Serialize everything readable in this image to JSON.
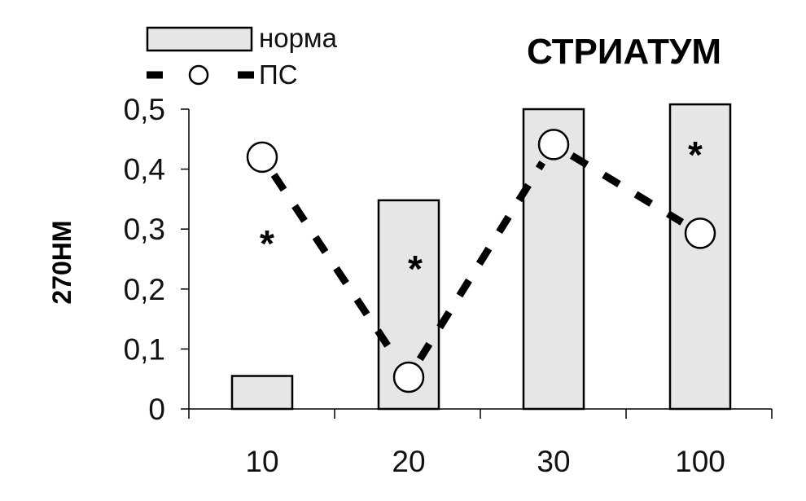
{
  "chart_data": {
    "type": "bar",
    "title": "СТРИАТУМ",
    "xlabel": "",
    "ylabel": "270НМ",
    "categories": [
      "10",
      "20",
      "30",
      "100"
    ],
    "ylim": [
      0,
      0.5
    ],
    "y_ticks": [
      "0",
      "0,1",
      "0,2",
      "0,3",
      "0,4",
      "0,5"
    ],
    "grid": false,
    "legend_position": "top-left",
    "series": [
      {
        "name": "норма",
        "type": "bar",
        "values": [
          0.055,
          0.348,
          0.5,
          0.508
        ],
        "color": "#e6e6e6"
      },
      {
        "name": "ПС",
        "type": "line",
        "values": [
          0.42,
          0.053,
          0.441,
          0.293
        ],
        "color": "#000000"
      }
    ],
    "annotations": [
      {
        "text": "*",
        "category_index": 0,
        "y": 0.295
      },
      {
        "text": "*",
        "category_index": 1,
        "y": 0.253
      },
      {
        "text": "*",
        "category_index": 3,
        "y": 0.443
      }
    ]
  }
}
